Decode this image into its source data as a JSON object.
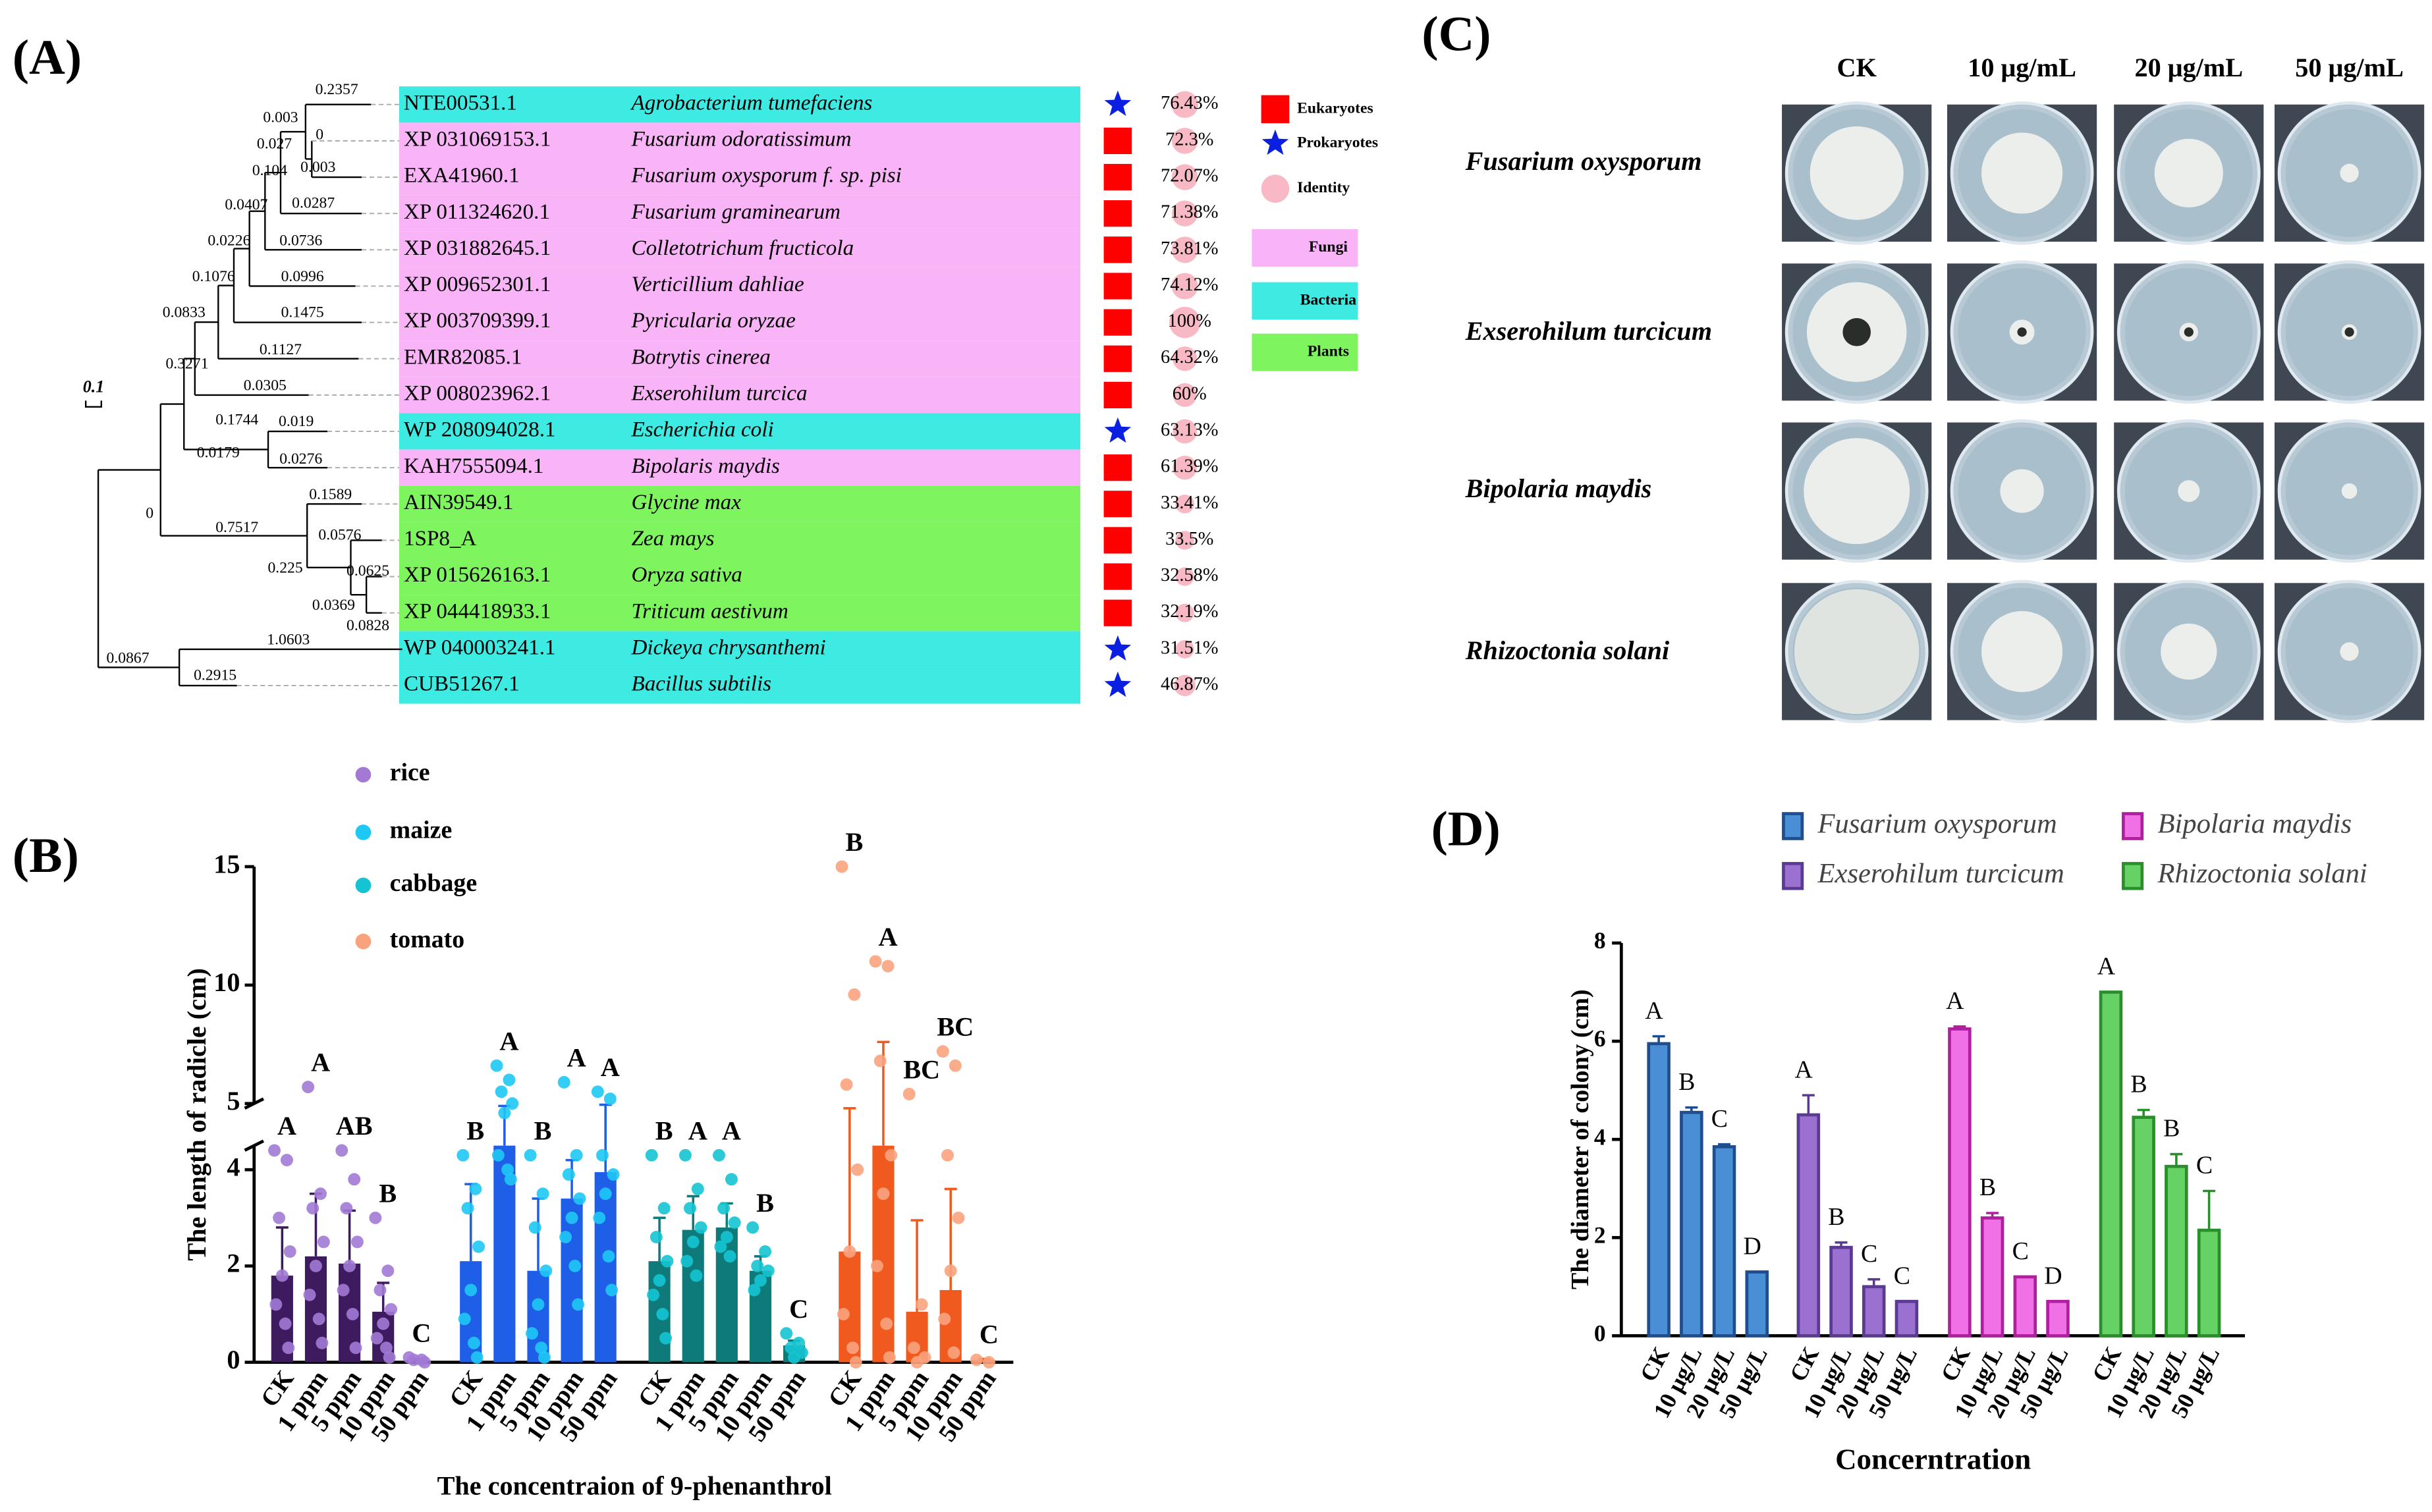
{
  "panel_labels": [
    "(A)",
    "(B)",
    "(C)",
    "(D)"
  ],
  "tree": {
    "scale_label": "0.1",
    "branch_lengths": [
      0.2357,
      0.003,
      0.027,
      0,
      0.104,
      0.003,
      0.0407,
      0.0287,
      0.0226,
      0.0736,
      0.1076,
      0.0996,
      0.0833,
      0.1475,
      0.1127,
      0.3271,
      0.0305,
      0.1744,
      0.019,
      0.0179,
      0.0276,
      0.1589,
      0,
      0.7517,
      0.0576,
      0.225,
      0.0625,
      0.0369,
      0.0828,
      1.0603,
      0.0867,
      0.2915
    ],
    "groups": [
      {
        "name": "Fungi",
        "color": "#f9b3f7"
      },
      {
        "name": "Bacteria",
        "color": "#3eebe2"
      },
      {
        "name": "Plants",
        "color": "#7ef55f"
      }
    ],
    "kingdoms": [
      {
        "name": "Eukaryotes",
        "color": "#ff0000",
        "shape": "square"
      },
      {
        "name": "Prokaryotes",
        "color": "#0b1fe0",
        "shape": "star"
      }
    ],
    "identity_legend": {
      "name": "Identity",
      "color": "#f8b8c4"
    },
    "rows": [
      {
        "accession": "NTE00531.1",
        "species": "Agrobacterium tumefaciens",
        "group": "Bacteria",
        "kingdom": "Prokaryotes",
        "identity": 76.43,
        "identity_label": "76.43%"
      },
      {
        "accession": "XP 031069153.1",
        "species": "Fusarium odoratissimum",
        "group": "Fungi",
        "kingdom": "Eukaryotes",
        "identity": 72.3,
        "identity_label": "72.3%"
      },
      {
        "accession": "EXA41960.1",
        "species": "Fusarium oxysporum f. sp. pisi",
        "group": "Fungi",
        "kingdom": "Eukaryotes",
        "identity": 72.07,
        "identity_label": "72.07%"
      },
      {
        "accession": "XP 011324620.1",
        "species": "Fusarium graminearum",
        "group": "Fungi",
        "kingdom": "Eukaryotes",
        "identity": 71.38,
        "identity_label": "71.38%"
      },
      {
        "accession": "XP 031882645.1",
        "species": "Colletotrichum fructicola",
        "group": "Fungi",
        "kingdom": "Eukaryotes",
        "identity": 73.81,
        "identity_label": "73.81%"
      },
      {
        "accession": "XP 009652301.1",
        "species": "Verticillium dahliae",
        "group": "Fungi",
        "kingdom": "Eukaryotes",
        "identity": 74.12,
        "identity_label": "74.12%"
      },
      {
        "accession": "XP 003709399.1",
        "species": "Pyricularia oryzae",
        "group": "Fungi",
        "kingdom": "Eukaryotes",
        "identity": 100,
        "identity_label": "100%"
      },
      {
        "accession": "EMR82085.1",
        "species": "Botrytis cinerea",
        "group": "Fungi",
        "kingdom": "Eukaryotes",
        "identity": 64.32,
        "identity_label": "64.32%"
      },
      {
        "accession": "XP 008023962.1",
        "species": "Exserohilum turcica",
        "group": "Fungi",
        "kingdom": "Eukaryotes",
        "identity": 60,
        "identity_label": "60%"
      },
      {
        "accession": "WP 208094028.1",
        "species": "Escherichia coli",
        "group": "Bacteria",
        "kingdom": "Prokaryotes",
        "identity": 63.13,
        "identity_label": "63.13%"
      },
      {
        "accession": "KAH7555094.1",
        "species": "Bipolaris maydis",
        "group": "Fungi",
        "kingdom": "Eukaryotes",
        "identity": 61.39,
        "identity_label": "61.39%"
      },
      {
        "accession": "AIN39549.1",
        "species": "Glycine max",
        "group": "Plants",
        "kingdom": "Eukaryotes",
        "identity": 33.41,
        "identity_label": "33.41%"
      },
      {
        "accession": "1SP8_A",
        "species": "Zea mays",
        "group": "Plants",
        "kingdom": "Eukaryotes",
        "identity": 33.5,
        "identity_label": "33.5%"
      },
      {
        "accession": "XP 015626163.1",
        "species": "Oryza sativa",
        "group": "Plants",
        "kingdom": "Eukaryotes",
        "identity": 32.58,
        "identity_label": "32.58%"
      },
      {
        "accession": "XP 044418933.1",
        "species": "Triticum aestivum",
        "group": "Plants",
        "kingdom": "Eukaryotes",
        "identity": 32.19,
        "identity_label": "32.19%"
      },
      {
        "accession": "WP 040003241.1",
        "species": "Dickeya chrysanthemi",
        "group": "Bacteria",
        "kingdom": "Prokaryotes",
        "identity": 31.51,
        "identity_label": "31.51%"
      },
      {
        "accession": "CUB51267.1",
        "species": "Bacillus subtilis",
        "group": "Bacteria",
        "kingdom": "Prokaryotes",
        "identity": 46.87,
        "identity_label": "46.87%"
      }
    ]
  },
  "plates": {
    "columns": [
      "CK",
      "10 μg/mL",
      "20 μg/mL",
      "50 μg/mL"
    ],
    "rows": [
      "Fusarium oxysporum",
      "Exserohilum turcicum",
      "Bipolaria maydis",
      "Rhizoctonia solani"
    ]
  },
  "chart_data": [
    {
      "type": "bar",
      "y_label": "The length of radicle (cm)",
      "x_label": "The concentraion of 9-phenanthrol",
      "categories": [
        "CK",
        "1 ppm",
        "5 ppm",
        "10 ppm",
        "50 ppm"
      ],
      "ylim": [
        0,
        15
      ],
      "axis_break": [
        4.5,
        5
      ],
      "yticks": [
        0,
        2,
        4,
        5,
        10,
        15
      ],
      "series": [
        {
          "name": "rice",
          "color": "#3d1b5e",
          "point_color": "#a27ad6",
          "values": [
            1.8,
            2.2,
            2.05,
            1.05,
            0.05
          ],
          "errors": [
            1.0,
            1.3,
            1.1,
            0.6,
            0.02
          ],
          "letters": [
            "A",
            "A",
            "AB",
            "B",
            "C"
          ],
          "points": [
            [
              4.4,
              4.2,
              3.0,
              2.3,
              1.8,
              1.2,
              0.8,
              0.3
            ],
            [
              5.7,
              3.5,
              3.2,
              2.5,
              2.0,
              1.4,
              0.9,
              0.4
            ],
            [
              4.4,
              3.8,
              3.2,
              2.5,
              2.0,
              1.5,
              1.0,
              0.3
            ],
            [
              3.0,
              1.9,
              1.5,
              1.1,
              0.8,
              0.5,
              0.3,
              0.1
            ],
            [
              0.1,
              0.05,
              0.05,
              0
            ]
          ]
        },
        {
          "name": "maize",
          "color": "#1f5fe8",
          "point_color": "#1ec8f5",
          "values": [
            2.1,
            4.5,
            1.9,
            3.4,
            3.95
          ],
          "errors": [
            1.6,
            0.4,
            1.5,
            0.8,
            1.0
          ],
          "letters": [
            "B",
            "A",
            "B",
            "A",
            "A"
          ],
          "points": [
            [
              4.3,
              3.6,
              3.2,
              2.4,
              1.5,
              0.9,
              0.4,
              0.1
            ],
            [
              6.6,
              6.0,
              5.5,
              5.0,
              4.6,
              4.3,
              4.0,
              3.8
            ],
            [
              4.3,
              3.5,
              2.8,
              1.9,
              1.2,
              0.6,
              0.3,
              0.1
            ],
            [
              5.9,
              4.3,
              3.9,
              3.4,
              3.0,
              2.6,
              2.0,
              1.2
            ],
            [
              5.5,
              5.2,
              4.3,
              3.9,
              3.5,
              3.0,
              2.2,
              1.5
            ]
          ]
        },
        {
          "name": "cabbage",
          "color": "#0f7a7a",
          "point_color": "#14c4d2",
          "values": [
            2.1,
            2.75,
            2.8,
            1.9,
            0.35
          ],
          "errors": [
            0.9,
            0.7,
            0.5,
            0.3,
            0.1
          ],
          "letters": [
            "B",
            "A",
            "A",
            "B",
            "C"
          ],
          "points": [
            [
              4.3,
              3.2,
              2.6,
              2.1,
              1.7,
              1.4,
              1.0,
              0.5
            ],
            [
              4.3,
              3.6,
              3.2,
              2.8,
              2.5,
              2.1,
              1.8
            ],
            [
              4.3,
              3.8,
              3.2,
              2.9,
              2.6,
              2.4,
              2.2
            ],
            [
              2.8,
              2.3,
              2.0,
              1.9,
              1.7,
              1.5
            ],
            [
              0.6,
              0.4,
              0.3,
              0.2,
              0.1
            ]
          ]
        },
        {
          "name": "tomato",
          "color": "#f05a1e",
          "point_color": "#f9a37e",
          "values": [
            2.3,
            4.5,
            1.05,
            1.5,
            0.05
          ],
          "errors": [
            2.5,
            3.1,
            1.9,
            2.1,
            0.02
          ],
          "letters": [
            "B",
            "A",
            "BC",
            "BC",
            "C"
          ],
          "points": [
            [
              15.0,
              9.6,
              5.8,
              4.0,
              2.3,
              1.0,
              0.3,
              0
            ],
            [
              11.0,
              10.8,
              6.8,
              4.3,
              3.5,
              2.0,
              0.8,
              0.1
            ],
            [
              5.4,
              1.2,
              0.3,
              0.1,
              0
            ],
            [
              7.2,
              6.6,
              4.3,
              3.0,
              1.9,
              0.9,
              0.2
            ],
            [
              0.05,
              0
            ]
          ]
        }
      ]
    },
    {
      "type": "bar",
      "y_label": "The diameter of colony (cm)",
      "x_label": "Concerntration",
      "categories": [
        "CK",
        "10 μg/L",
        "20 μg/L",
        "50 μg/L"
      ],
      "ylim": [
        0,
        8
      ],
      "yticks": [
        0,
        2,
        4,
        6,
        8
      ],
      "series": [
        {
          "name": "Fusarium oxysporum",
          "color": "#4a8fd6",
          "edge_color": "#1f4e8f",
          "values": [
            5.95,
            4.55,
            3.85,
            1.3
          ],
          "errors": [
            0.15,
            0.1,
            0.05,
            0
          ],
          "letters": [
            "A",
            "B",
            "C",
            "D"
          ]
        },
        {
          "name": "Exserohilum turcicum",
          "color": "#9a70d0",
          "edge_color": "#5b3a91",
          "values": [
            4.5,
            1.8,
            1.0,
            0.7
          ],
          "errors": [
            0.4,
            0.1,
            0.15,
            0
          ],
          "letters": [
            "A",
            "B",
            "C",
            "C"
          ]
        },
        {
          "name": "Bipolaria maydis",
          "color": "#f070e6",
          "edge_color": "#b01fa0",
          "values": [
            6.25,
            2.4,
            1.2,
            0.7
          ],
          "errors": [
            0.05,
            0.1,
            0,
            0
          ],
          "letters": [
            "A",
            "B",
            "C",
            "D"
          ]
        },
        {
          "name": "Rhizoctonia solani",
          "color": "#66d266",
          "edge_color": "#2a8f2a",
          "values": [
            7.0,
            4.45,
            3.45,
            2.15
          ],
          "errors": [
            0,
            0.15,
            0.25,
            0.8
          ],
          "letters": [
            "A",
            "B",
            "B",
            "C"
          ]
        }
      ]
    }
  ]
}
